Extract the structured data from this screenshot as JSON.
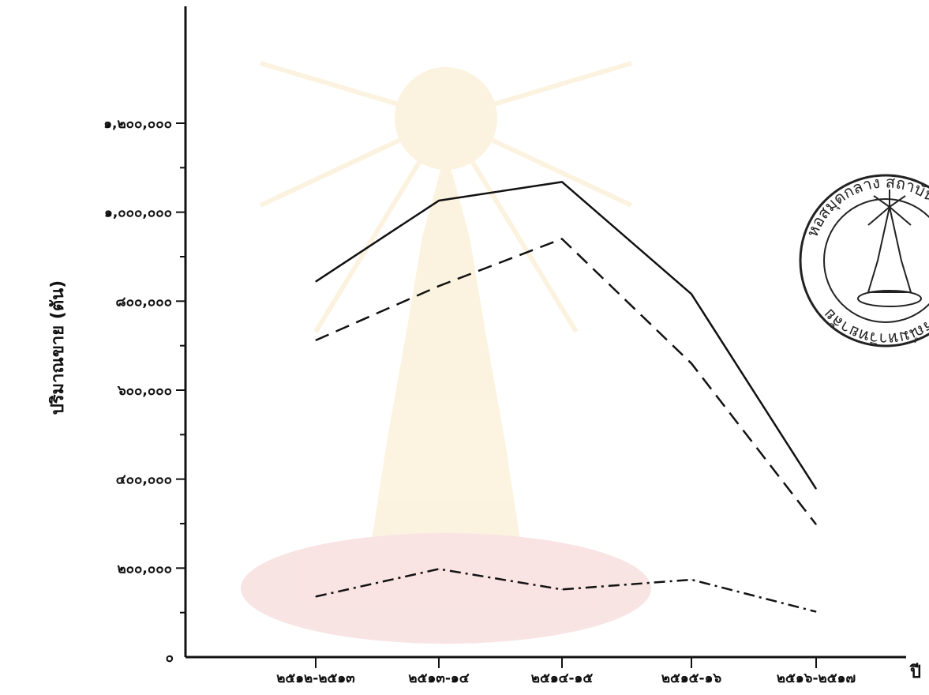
{
  "chart_data": {
    "type": "line",
    "title": "",
    "xlabel": "ปี",
    "ylabel": "ปริมาณขาย (ตัน)",
    "categories": [
      "๒๕๑๒-๒๕๑๓",
      "๒๕๑๓-๑๔",
      "๒๕๑๔-๑๕",
      "๒๕๑๕-๑๖",
      "๒๕๑๖-๒๕๑๗"
    ],
    "y_ticks": [
      0,
      200000,
      400000,
      600000,
      800000,
      1000000,
      1200000
    ],
    "y_tick_labels": [
      "๐",
      "๒๐๐,๐๐๐",
      "๔๐๐,๐๐๐",
      "๖๐๐,๐๐๐",
      "๘๐๐,๐๐๐",
      "๑,๐๐๐,๐๐๐",
      "๑,๒๐๐,๐๐๐"
    ],
    "ylim": [
      0,
      1200000
    ],
    "grid": false,
    "series": [
      {
        "style": "solid",
        "values": [
          844000,
          1026000,
          1068000,
          816000,
          378000
        ]
      },
      {
        "style": "dashed",
        "values": [
          712000,
          834000,
          940000,
          660000,
          298000
        ]
      },
      {
        "style": "dashdot",
        "values": [
          136000,
          198000,
          152000,
          174000,
          102000
        ]
      }
    ]
  },
  "stamp": {
    "text": "หอสมุดกลาง สถาบันวิทยบริการ จุฬาลงกรณ์มหาวิทยาลัย"
  },
  "colors": {
    "ink": "#111111",
    "stamp": "#222222"
  }
}
